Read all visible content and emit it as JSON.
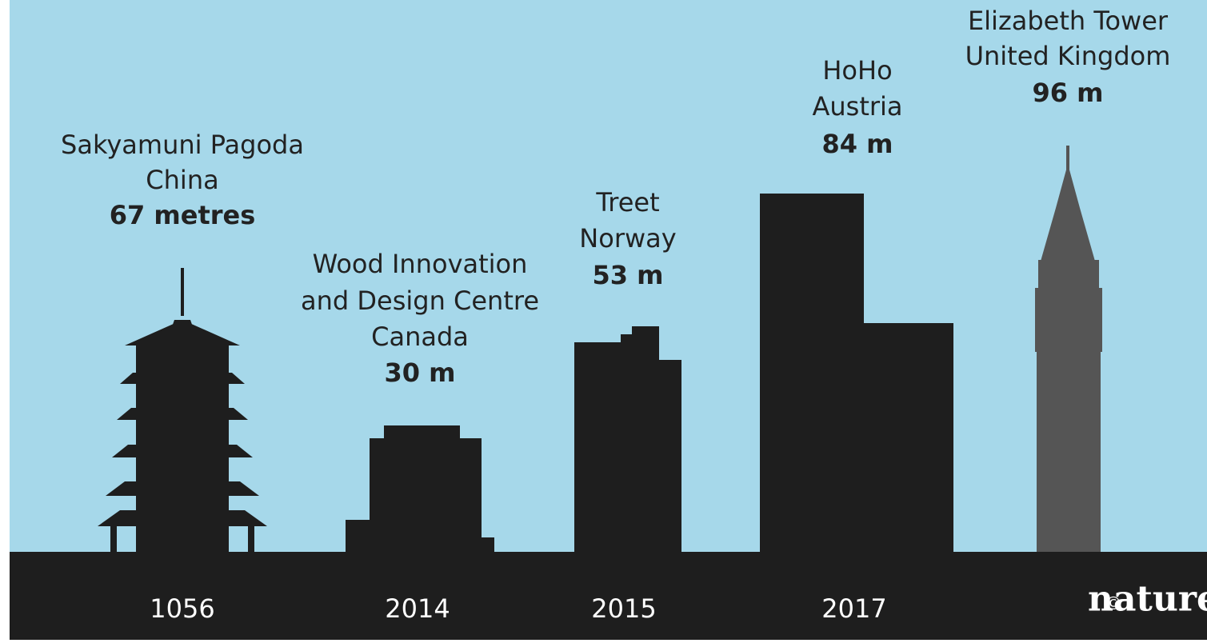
{
  "buildings": [
    {
      "name": "Sakyamuni Pagoda",
      "country": "China",
      "height": "67 metres",
      "year": "1056"
    },
    {
      "name": "Wood Innovation",
      "name_2": "and Design Centre",
      "country": "Canada",
      "height": "30 m",
      "year": "2014"
    },
    {
      "name": "Treet",
      "country": "Norway",
      "height": "53 m",
      "year": "2015"
    },
    {
      "name": "HoHo",
      "country": "Austria",
      "height": "84 m",
      "year": "2017"
    },
    {
      "name": "Elizabeth Tower",
      "country": "United Kingdom",
      "height": "96 m"
    }
  ],
  "credit": {
    "symbol": "©",
    "name": "nature"
  }
}
